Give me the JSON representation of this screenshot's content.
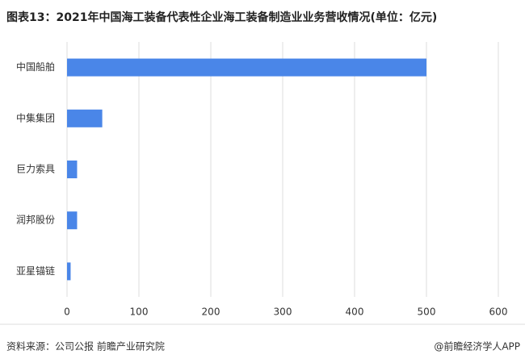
{
  "chart_data": {
    "type": "bar",
    "orientation": "horizontal",
    "title": "图表13：2021年中国海工装备代表性企业海工装备制造业业务营收情况(单位：亿元)",
    "categories": [
      "中国船舶",
      "中集集团",
      "巨力索具",
      "润邦股份",
      "亚星锚链"
    ],
    "values": [
      500,
      49,
      14,
      14,
      5
    ],
    "color": "#4a86e8",
    "xlim": [
      0,
      600
    ],
    "xticks": [
      0,
      100,
      200,
      300,
      400,
      500,
      600
    ],
    "grid": true,
    "source": "资料来源：公司公报 前瞻产业研究院",
    "credit": "@前瞻经济学人APP"
  }
}
